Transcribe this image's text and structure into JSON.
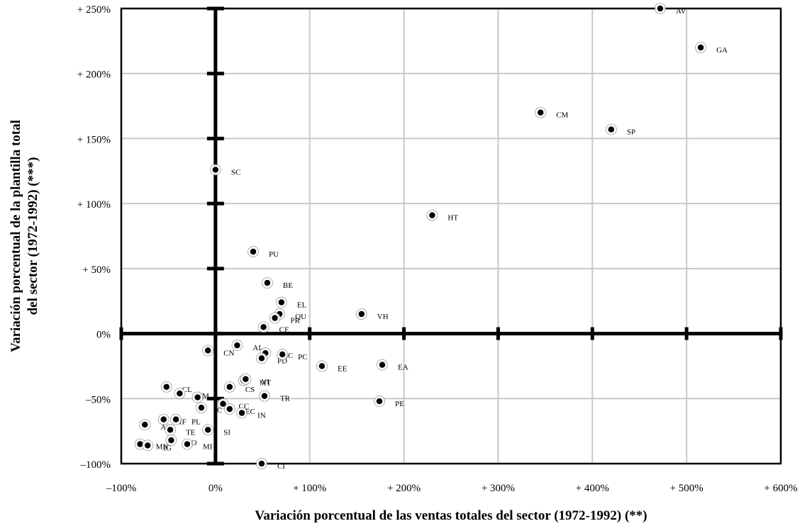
{
  "chart_data": {
    "type": "scatter",
    "xlabel": "Variación porcentual de las ventas totales del sector (1972-1992) (**)",
    "ylabel_line1": "Variación porcentual de la plantilla total",
    "ylabel_line2": "del sector (1972-1992) (***)",
    "xlim": [
      -100,
      600
    ],
    "ylim": [
      -100,
      250
    ],
    "grid": true,
    "x_ticks": [
      {
        "value": -100,
        "label": "–100%"
      },
      {
        "value": 0,
        "label": "0%"
      },
      {
        "value": 100,
        "label": "+ 100%"
      },
      {
        "value": 200,
        "label": "+ 200%"
      },
      {
        "value": 300,
        "label": "+ 300%"
      },
      {
        "value": 400,
        "label": "+ 400%"
      },
      {
        "value": 500,
        "label": "+ 500%"
      },
      {
        "value": 600,
        "label": "+ 600%"
      }
    ],
    "y_ticks": [
      {
        "value": 250,
        "label": "+ 250%"
      },
      {
        "value": 200,
        "label": "+ 200%"
      },
      {
        "value": 150,
        "label": "+ 150%"
      },
      {
        "value": 100,
        "label": "+ 100%"
      },
      {
        "value": 50,
        "label": "+ 50%"
      },
      {
        "value": 0,
        "label": "0%"
      },
      {
        "value": -50,
        "label": "–50%"
      },
      {
        "value": -100,
        "label": "–100%"
      }
    ],
    "points": [
      {
        "label": "AV",
        "x": 472,
        "y": 250
      },
      {
        "label": "GA",
        "x": 515,
        "y": 220
      },
      {
        "label": "CM",
        "x": 345,
        "y": 170
      },
      {
        "label": "SP",
        "x": 420,
        "y": 157
      },
      {
        "label": "SC",
        "x": 0,
        "y": 126
      },
      {
        "label": "HT",
        "x": 230,
        "y": 91
      },
      {
        "label": "PU",
        "x": 40,
        "y": 63
      },
      {
        "label": "BE",
        "x": 55,
        "y": 39
      },
      {
        "label": "EL",
        "x": 70,
        "y": 24
      },
      {
        "label": "QU",
        "x": 68,
        "y": 15
      },
      {
        "label": "PR",
        "x": 63,
        "y": 12
      },
      {
        "label": "VH",
        "x": 155,
        "y": 15
      },
      {
        "label": "CE",
        "x": 51,
        "y": 5
      },
      {
        "label": "CN",
        "x": -8,
        "y": -13
      },
      {
        "label": "AL",
        "x": 23,
        "y": -9
      },
      {
        "label": "MC",
        "x": 53,
        "y": -15
      },
      {
        "label": "PD",
        "x": 49,
        "y": -19
      },
      {
        "label": "PC",
        "x": 71,
        "y": -16
      },
      {
        "label": "EE",
        "x": 113,
        "y": -25
      },
      {
        "label": "EA",
        "x": 177,
        "y": -24
      },
      {
        "label": "MT",
        "x": 30,
        "y": -36
      },
      {
        "label": "VI",
        "x": 32,
        "y": -35
      },
      {
        "label": "CS",
        "x": 15,
        "y": -41
      },
      {
        "label": "CL",
        "x": -52,
        "y": -41
      },
      {
        "label": "MM",
        "x": -38,
        "y": -46
      },
      {
        "label": "TR",
        "x": 52,
        "y": -48
      },
      {
        "label": "PE",
        "x": 174,
        "y": -52
      },
      {
        "label": "C",
        "x": -19,
        "y": -49
      },
      {
        "label": "CC",
        "x": 8,
        "y": -54
      },
      {
        "label": "C",
        "x": -15,
        "y": -57
      },
      {
        "label": "EC",
        "x": 15,
        "y": -58
      },
      {
        "label": "IN",
        "x": 28,
        "y": -61
      },
      {
        "label": "IF",
        "x": -55,
        "y": -66
      },
      {
        "label": "PL",
        "x": -42,
        "y": -66
      },
      {
        "label": "AS",
        "x": -75,
        "y": -70
      },
      {
        "label": "TE",
        "x": -48,
        "y": -74
      },
      {
        "label": "SI",
        "x": -8,
        "y": -74
      },
      {
        "label": "PO",
        "x": -47,
        "y": -82
      },
      {
        "label": "MN",
        "x": -80,
        "y": -85
      },
      {
        "label": "IG",
        "x": -72,
        "y": -86
      },
      {
        "label": "MI",
        "x": -30,
        "y": -85
      },
      {
        "label": "CI",
        "x": 49,
        "y": -100
      }
    ]
  }
}
